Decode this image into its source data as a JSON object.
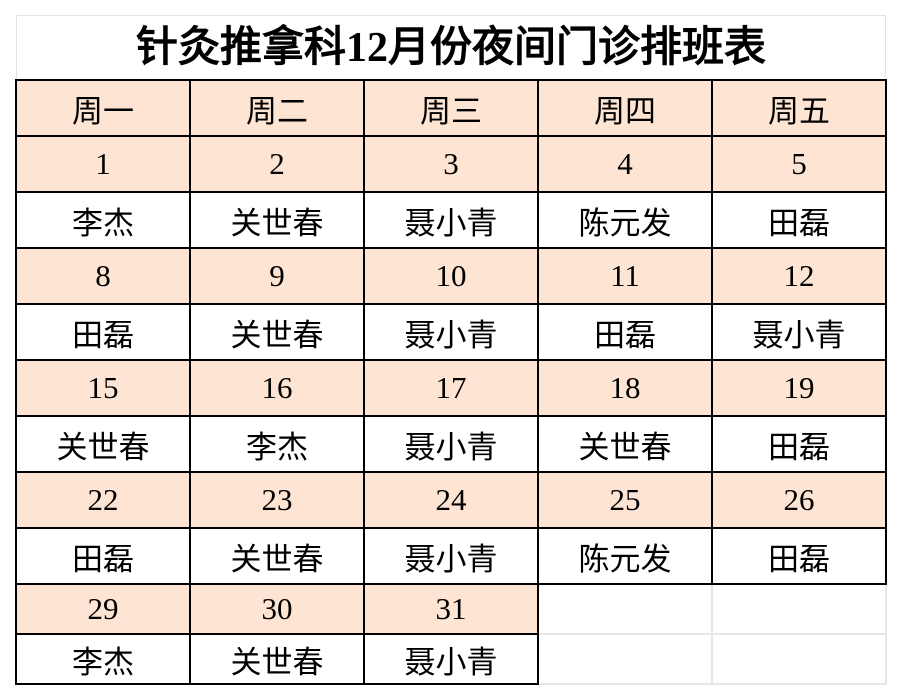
{
  "title": "针灸推拿科12月份夜间门诊排班表",
  "colors": {
    "header_fill": "#fde4d3",
    "border": "#000000"
  },
  "weekdays": [
    "周一",
    "周二",
    "周三",
    "周四",
    "周五"
  ],
  "weeks": [
    {
      "dates": [
        "1",
        "2",
        "3",
        "4",
        "5"
      ],
      "names": [
        "李杰",
        "关世春",
        "聂小青",
        "陈元发",
        "田磊"
      ]
    },
    {
      "dates": [
        "8",
        "9",
        "10",
        "11",
        "12"
      ],
      "names": [
        "田磊",
        "关世春",
        "聂小青",
        "田磊",
        "聂小青"
      ]
    },
    {
      "dates": [
        "15",
        "16",
        "17",
        "18",
        "19"
      ],
      "names": [
        "关世春",
        "李杰",
        "聂小青",
        "关世春",
        "田磊"
      ]
    },
    {
      "dates": [
        "22",
        "23",
        "24",
        "25",
        "26"
      ],
      "names": [
        "田磊",
        "关世春",
        "聂小青",
        "陈元发",
        "田磊"
      ]
    },
    {
      "dates": [
        "29",
        "30",
        "31"
      ],
      "names": [
        "李杰",
        "关世春",
        "聂小青"
      ]
    }
  ]
}
